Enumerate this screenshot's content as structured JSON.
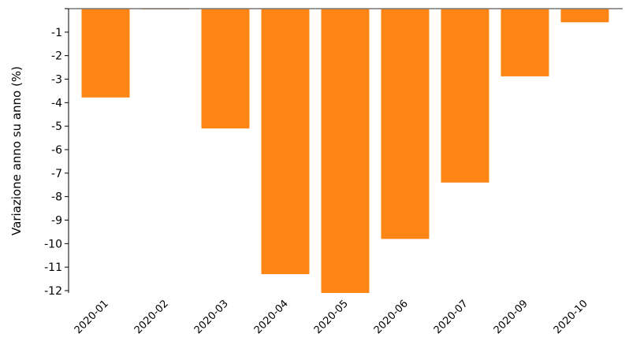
{
  "chart_data": {
    "type": "bar",
    "title": "",
    "xlabel": "",
    "ylabel": "Variazione anno su anno (%)",
    "categories": [
      "2020-01",
      "2020-02",
      "2020-03",
      "2020-04",
      "2020-05",
      "2020-06",
      "2020-07",
      "2020-09",
      "2020-10"
    ],
    "values": [
      -3.78,
      -0.03,
      -5.1,
      -11.3,
      -12.1,
      -9.8,
      -7.4,
      -2.88,
      -0.58
    ],
    "ylim": [
      -12.1,
      0
    ],
    "yticks": [
      -1,
      -2,
      -3,
      -4,
      -5,
      -6,
      -7,
      -8,
      -9,
      -10,
      -11,
      -12
    ],
    "grid": false,
    "colors": {
      "bar": "#ff8514",
      "axis": "#000000",
      "zero_line": "#777777"
    }
  }
}
